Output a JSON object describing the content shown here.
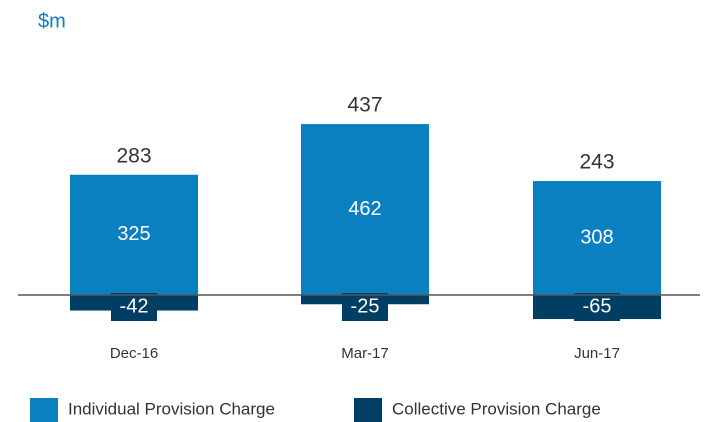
{
  "chart_data": {
    "type": "stacked_bar",
    "unit_label": "$m",
    "categories": [
      "Dec-16",
      "Mar-17",
      "Jun-17"
    ],
    "series": [
      {
        "name": "Individual Provision Charge",
        "color": "#0a80c1",
        "values": [
          325,
          462,
          308
        ]
      },
      {
        "name": "Collective Provision Charge",
        "color": "#003e63",
        "values": [
          -42,
          -25,
          -65
        ]
      }
    ],
    "totals": [
      283,
      437,
      243
    ],
    "legend": "bottom"
  }
}
